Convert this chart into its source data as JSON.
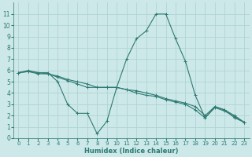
{
  "background_color": "#cde8e8",
  "grid_color": "#b0d4d4",
  "line_color": "#2d7a72",
  "xlabel": "Humidex (Indice chaleur)",
  "xlim": [
    -0.5,
    23.5
  ],
  "ylim": [
    0,
    12
  ],
  "yticks": [
    0,
    1,
    2,
    3,
    4,
    5,
    6,
    7,
    8,
    9,
    10,
    11
  ],
  "xticks": [
    0,
    1,
    2,
    3,
    4,
    5,
    6,
    7,
    8,
    9,
    10,
    11,
    12,
    13,
    14,
    15,
    16,
    17,
    18,
    19,
    20,
    21,
    22,
    23
  ],
  "series1": [
    5.8,
    6.0,
    5.8,
    5.8,
    5.0,
    3.0,
    2.2,
    2.2,
    0.4,
    1.5,
    4.5,
    7.0,
    8.8,
    9.5,
    11.0,
    11.0,
    8.8,
    6.8,
    3.8,
    1.8,
    2.8,
    2.5,
    1.8,
    1.4
  ],
  "series2": [
    5.8,
    5.9,
    5.7,
    5.7,
    5.4,
    5.1,
    4.8,
    4.5,
    4.5,
    4.5,
    4.5,
    4.3,
    4.0,
    3.8,
    3.7,
    3.4,
    3.2,
    3.0,
    2.5,
    1.8,
    2.7,
    2.4,
    1.9,
    1.4
  ],
  "series3": [
    5.8,
    5.9,
    5.8,
    5.7,
    5.5,
    5.2,
    5.0,
    4.8,
    4.5,
    4.5,
    4.5,
    4.3,
    4.2,
    4.0,
    3.8,
    3.5,
    3.3,
    3.1,
    2.8,
    2.0,
    2.8,
    2.5,
    2.0,
    1.4
  ]
}
